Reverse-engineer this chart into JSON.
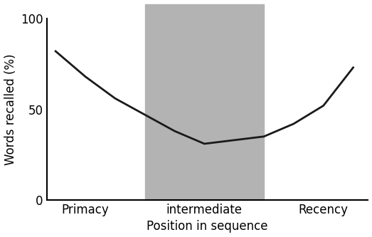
{
  "x": [
    0,
    1,
    2,
    3,
    4,
    5,
    6,
    7,
    8,
    9,
    10
  ],
  "y": [
    82,
    68,
    56,
    47,
    38,
    31,
    33,
    35,
    42,
    52,
    73
  ],
  "line_color": "#1a1a1a",
  "line_width": 2.0,
  "shade_x_start": 3.0,
  "shade_x_end": 7.0,
  "shade_color": "#b3b3b3",
  "shade_alpha": 1.0,
  "xlim": [
    -0.3,
    10.5
  ],
  "ylim": [
    0,
    100
  ],
  "yticks": [
    0,
    50,
    100
  ],
  "xtick_positions": [
    1.0,
    5.0,
    9.0
  ],
  "xtick_labels": [
    "Primacy",
    "intermediate",
    "Recency"
  ],
  "ylabel": "Words recalled (%)",
  "xlabel": "Position in sequence",
  "ylabel_fontsize": 12,
  "xlabel_fontsize": 12,
  "xtick_fontsize": 12,
  "ytick_fontsize": 12,
  "background_color": "#ffffff",
  "spine_linewidth": 1.5
}
